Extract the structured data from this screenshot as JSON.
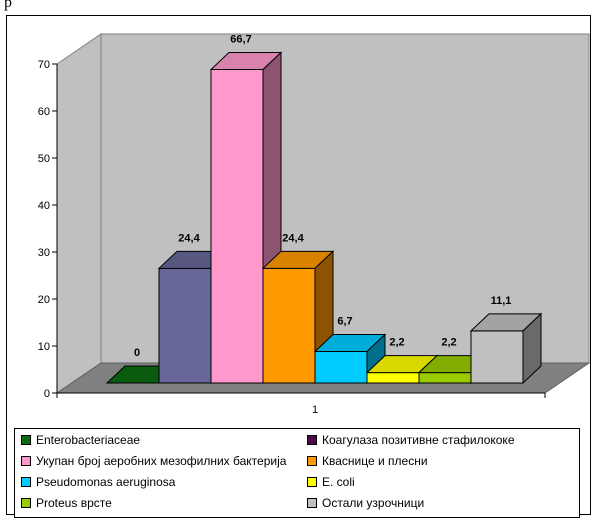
{
  "header_fragment": "р",
  "chart_data": {
    "type": "bar",
    "view": "3d-clustered-column",
    "categories": [
      "1"
    ],
    "ylim": [
      0,
      70
    ],
    "yticks": [
      0,
      10,
      20,
      30,
      40,
      50,
      60,
      70
    ],
    "grid": false,
    "legend_position": "bottom",
    "series": [
      {
        "name": "Enterobacteriaceae",
        "values": [
          0
        ],
        "label": "0",
        "color": "#0d6b12"
      },
      {
        "name": "Коагулаза позитивне стафилококе",
        "values": [
          null
        ],
        "label": "",
        "color": "#4b0a4b"
      },
      {
        "name": "Укупан број аеробних мезофилних бактерија",
        "values": [
          24.4
        ],
        "label": "24,4",
        "color": "#666699"
      },
      {
        "name": "Кваснице и плесни",
        "values": [
          66.7
        ],
        "label": "66,7",
        "color": "#ff99cc"
      },
      {
        "name": "Pseudomonas aeruginosa",
        "values": [
          24.4
        ],
        "label": "24,4",
        "color": "#ff9900"
      },
      {
        "name": "E. coli",
        "values": [
          6.7
        ],
        "label": "6,7",
        "color": "#00ccff"
      },
      {
        "name": "Proteus врсте",
        "values": [
          2.2
        ],
        "label": "2,2",
        "color": "#ffff00"
      },
      {
        "name": "Остали узрочници",
        "values": [
          2.2
        ],
        "label": "2,2",
        "color": "#99cc00"
      },
      {
        "name": "",
        "values": [
          11.1
        ],
        "label": "11,1",
        "color": "#c0c0c0"
      }
    ],
    "legend": [
      {
        "label": "Enterobacteriaceae",
        "color": "#0d6b12"
      },
      {
        "label": "Коагулаза позитивне стафилококе",
        "color": "#4b0a4b"
      },
      {
        "label": "Укупан број аеробних мезофилних бактерија",
        "color": "#ff99cc"
      },
      {
        "label": "Кваснице и плесни",
        "color": "#ff9900"
      },
      {
        "label": "Pseudomonas aeruginosa",
        "color": "#00ccff"
      },
      {
        "label": "E. coli",
        "color": "#ffff00"
      },
      {
        "label": "Proteus врсте",
        "color": "#99cc00"
      },
      {
        "label": "Остали узрочници",
        "color": "#c0c0c0"
      }
    ]
  }
}
